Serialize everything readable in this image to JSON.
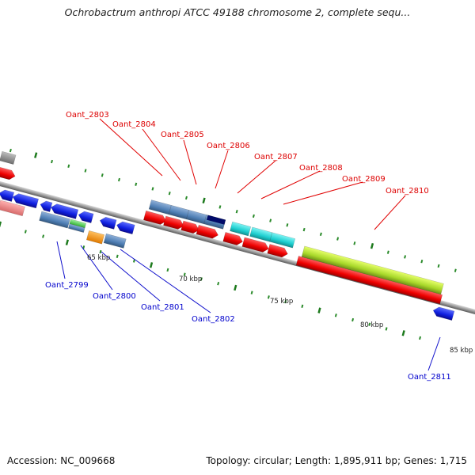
{
  "title": "Ochrobactrum anthropi ATCC 49188 chromosome 2, complete sequ...",
  "footer": {
    "accession": "Accession: NC_009668",
    "summary": "Topology: circular; Length: 1,895,911 bp; Genes: 1,715"
  },
  "scale_labels": [
    "65 kbp",
    "70 kbp",
    "75 kbp",
    "80 kbp",
    "85 kbp"
  ],
  "gene_labels_top": [
    "Oant_2803",
    "Oant_2804",
    "Oant_2805",
    "Oant_2806",
    "Oant_2807",
    "Oant_2808",
    "Oant_2809",
    "Oant_2810"
  ],
  "gene_labels_bottom": [
    "Oant_2799",
    "Oant_2800",
    "Oant_2801",
    "Oant_2802",
    "Oant_2811"
  ],
  "colors": {
    "top_label": "#dd0000",
    "bottom_label": "#0000cc",
    "backbone": "#8a8a8a",
    "tick_major": "#1d7a1d",
    "tick_minor": "#2a8a2a"
  }
}
